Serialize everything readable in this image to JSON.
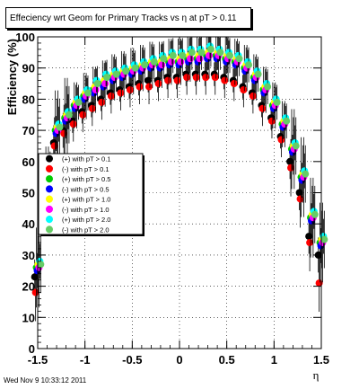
{
  "title": "Effeciency wrt Geom for Primary Tracks vs    η at pT > 0.11",
  "footer": "Wed Nov  9 10:33:12 2011",
  "chart_data": {
    "type": "scatter",
    "title": "Effeciency wrt Geom for Primary Tracks vs    η at pT > 0.11",
    "xlabel": "η",
    "ylabel": "Efficiency (%)",
    "xlim": [
      -1.5,
      1.5
    ],
    "ylim": [
      0,
      100
    ],
    "x_ticks": [
      "-1.5",
      "-1",
      "-0.5",
      "0",
      "0.5",
      "1",
      "1.5"
    ],
    "y_ticks": [
      "0",
      "10",
      "20",
      "30",
      "40",
      "50",
      "60",
      "70",
      "80",
      "90",
      "100"
    ],
    "grid": true,
    "legend_position": "left",
    "x": [
      -1.5,
      -1.4,
      -1.3,
      -1.2,
      -1.1,
      -1.0,
      -0.9,
      -0.8,
      -0.7,
      -0.6,
      -0.5,
      -0.4,
      -0.3,
      -0.2,
      -0.1,
      0.0,
      0.1,
      0.2,
      0.3,
      0.4,
      0.5,
      0.6,
      0.7,
      0.8,
      0.9,
      1.0,
      1.1,
      1.2,
      1.3,
      1.4,
      1.5
    ],
    "series": [
      {
        "name": "(+) with pT > 0.1",
        "color": "#000000",
        "values": [
          23,
          48,
          66,
          70,
          73,
          76,
          78,
          80,
          82,
          83,
          84,
          85,
          86,
          86,
          87,
          87,
          88,
          88,
          88,
          88,
          87,
          86,
          84,
          82,
          78,
          74,
          68,
          60,
          50,
          36,
          30
        ]
      },
      {
        "name": "(-) with pT > 0.1",
        "color": "#ff0000",
        "values": [
          18,
          46,
          65,
          69,
          72,
          75,
          77,
          79,
          81,
          82,
          83,
          84,
          84,
          85,
          86,
          86,
          87,
          87,
          87,
          87,
          86,
          85,
          83,
          81,
          77,
          73,
          67,
          58,
          48,
          34,
          21
        ]
      },
      {
        "name": "(+) with pT > 0.5",
        "color": "#00cc00",
        "values": [
          26,
          52,
          70,
          74,
          78,
          81,
          83,
          85,
          87,
          88,
          89,
          90,
          91,
          91,
          92,
          92,
          93,
          93,
          94,
          94,
          93,
          92,
          90,
          87,
          83,
          78,
          72,
          64,
          55,
          42,
          34
        ]
      },
      {
        "name": "(-) with pT > 0.5",
        "color": "#0000ff",
        "values": [
          25,
          51,
          69,
          73,
          77,
          80,
          82,
          84,
          86,
          87,
          88,
          89,
          90,
          90,
          91,
          91,
          92,
          92,
          93,
          93,
          92,
          91,
          89,
          86,
          82,
          77,
          71,
          63,
          54,
          41,
          33
        ]
      },
      {
        "name": "(+) with pT > 1.0",
        "color": "#ffff00",
        "values": [
          27,
          53,
          71,
          75,
          79,
          82,
          84,
          86,
          88,
          89,
          90,
          91,
          92,
          92,
          93,
          93,
          94,
          94,
          95,
          95,
          94,
          93,
          91,
          88,
          84,
          79,
          73,
          65,
          56,
          43,
          35
        ]
      },
      {
        "name": "(-) with pT > 1.0",
        "color": "#ff00ff",
        "values": [
          26,
          52,
          70,
          74,
          78,
          81,
          83,
          85,
          87,
          88,
          89,
          90,
          91,
          91,
          92,
          92,
          93,
          93,
          94,
          94,
          93,
          92,
          90,
          87,
          83,
          78,
          72,
          64,
          55,
          42,
          34
        ]
      },
      {
        "name": "(+) with pT > 2.0",
        "color": "#00ffff",
        "values": [
          28,
          55,
          72,
          76,
          80,
          83,
          86,
          88,
          89,
          90,
          91,
          92,
          93,
          94,
          95,
          95,
          96,
          96,
          97,
          96,
          95,
          94,
          92,
          89,
          85,
          80,
          74,
          66,
          57,
          44,
          36
        ]
      },
      {
        "name": "(-) with pT > 2.0",
        "color": "#66cc66",
        "values": [
          27,
          54,
          71,
          75,
          79,
          82,
          85,
          87,
          88,
          89,
          90,
          91,
          92,
          93,
          94,
          94,
          95,
          95,
          96,
          95,
          94,
          93,
          91,
          88,
          84,
          79,
          73,
          65,
          56,
          43,
          35
        ]
      }
    ]
  }
}
